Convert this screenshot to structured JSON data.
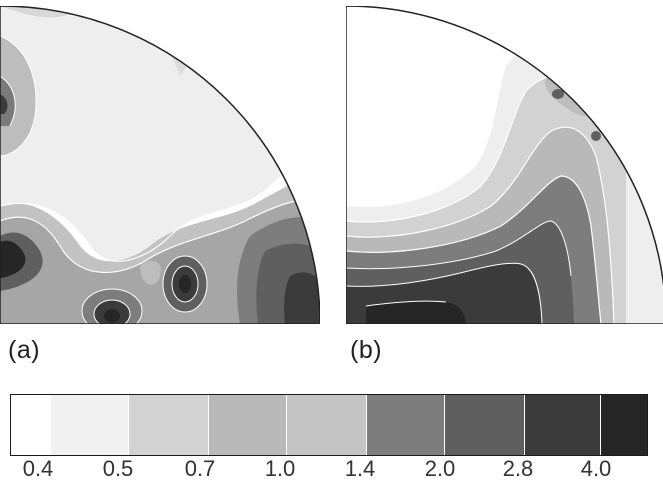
{
  "panels": [
    {
      "label": "(a)"
    },
    {
      "label": "(b)"
    }
  ],
  "legend": {
    "levels": [
      "0.4",
      "0.5",
      "0.7",
      "1.0",
      "1.4",
      "2.0",
      "2.8",
      "4.0"
    ],
    "colors": [
      "#ffffff",
      "#f1f1f1",
      "#d2d2d2",
      "#b9b9b9",
      "#c4c4c4",
      "#7d7d7d",
      "#5f5f5f",
      "#3b3b3b",
      "#262626"
    ]
  }
}
